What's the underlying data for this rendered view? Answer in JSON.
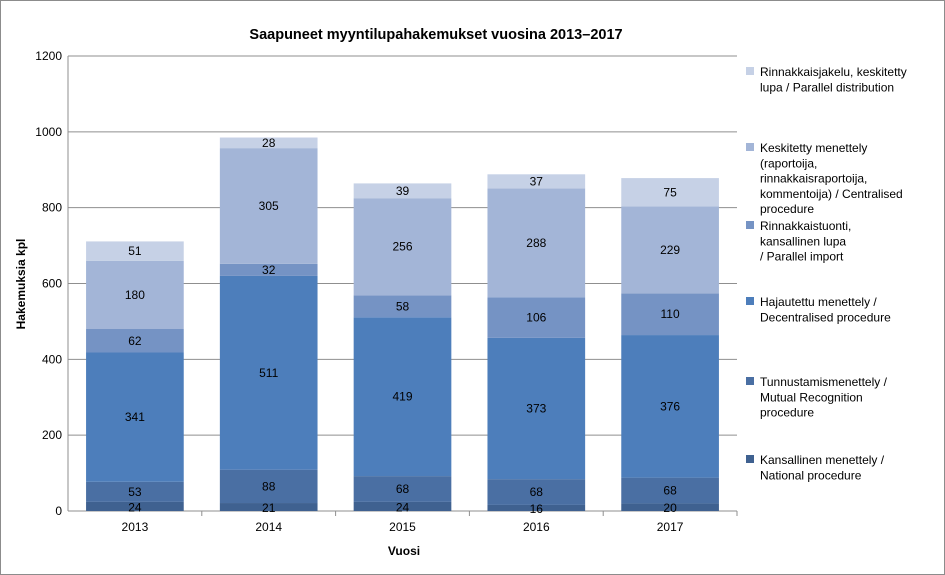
{
  "chart_data": {
    "type": "bar",
    "stacked": true,
    "title": "Saapuneet myyntilupahakemukset  vuosina 2013–2017",
    "xlabel": "Vuosi",
    "ylabel": "Hakemuksia kpl",
    "ylim": [
      0,
      1200
    ],
    "yticks": [
      0,
      200,
      400,
      600,
      800,
      1000,
      1200
    ],
    "grid": true,
    "legend_position": "right",
    "categories": [
      "2013",
      "2014",
      "2015",
      "2016",
      "2017"
    ],
    "series": [
      {
        "name": "Kansallinen menettely / National procedure",
        "color": "#3f6190",
        "values": [
          24,
          21,
          24,
          16,
          20
        ]
      },
      {
        "name": "Tunnustamismenettely / Mutual Recognition procedure",
        "color": "#4a6fa3",
        "values": [
          53,
          88,
          68,
          68,
          68
        ]
      },
      {
        "name": "Hajautettu menettely / Decentralised procedure",
        "color": "#4d7ebb",
        "values": [
          341,
          511,
          419,
          373,
          376
        ]
      },
      {
        "name": "Rinnakkaistuonti, kansallinen lupa / Parallel import",
        "color": "#7593c4",
        "values": [
          62,
          32,
          58,
          106,
          110
        ]
      },
      {
        "name": "Keskitetty menettely (raportoija, rinnakkaisraportoija, kommentoija) / Centralised procedure",
        "color": "#a3b5d7",
        "values": [
          180,
          305,
          256,
          288,
          229
        ]
      },
      {
        "name": "Rinnakkaisjakelu, keskitetty lupa / Parallel distribution",
        "color": "#c6d1e6",
        "values": [
          51,
          28,
          39,
          37,
          75
        ]
      }
    ],
    "legend_lines": [
      [
        "Rinnakkaisjakelu, keskitetty",
        "lupa / Parallel distribution"
      ],
      [
        "Keskitetty menettely",
        "(raportoija,",
        "rinnakkaisraportoija,",
        "kommentoija) / Centralised",
        "procedure"
      ],
      [
        "Rinnakkaistuonti,",
        "kansallinen lupa",
        "/ Parallel import"
      ],
      [
        "Hajautettu menettely /",
        "Decentralised procedure"
      ],
      [
        "Tunnustamismenettely /",
        "Mutual Recognition",
        "procedure"
      ],
      [
        "Kansallinen menettely /",
        "National procedure"
      ]
    ]
  }
}
